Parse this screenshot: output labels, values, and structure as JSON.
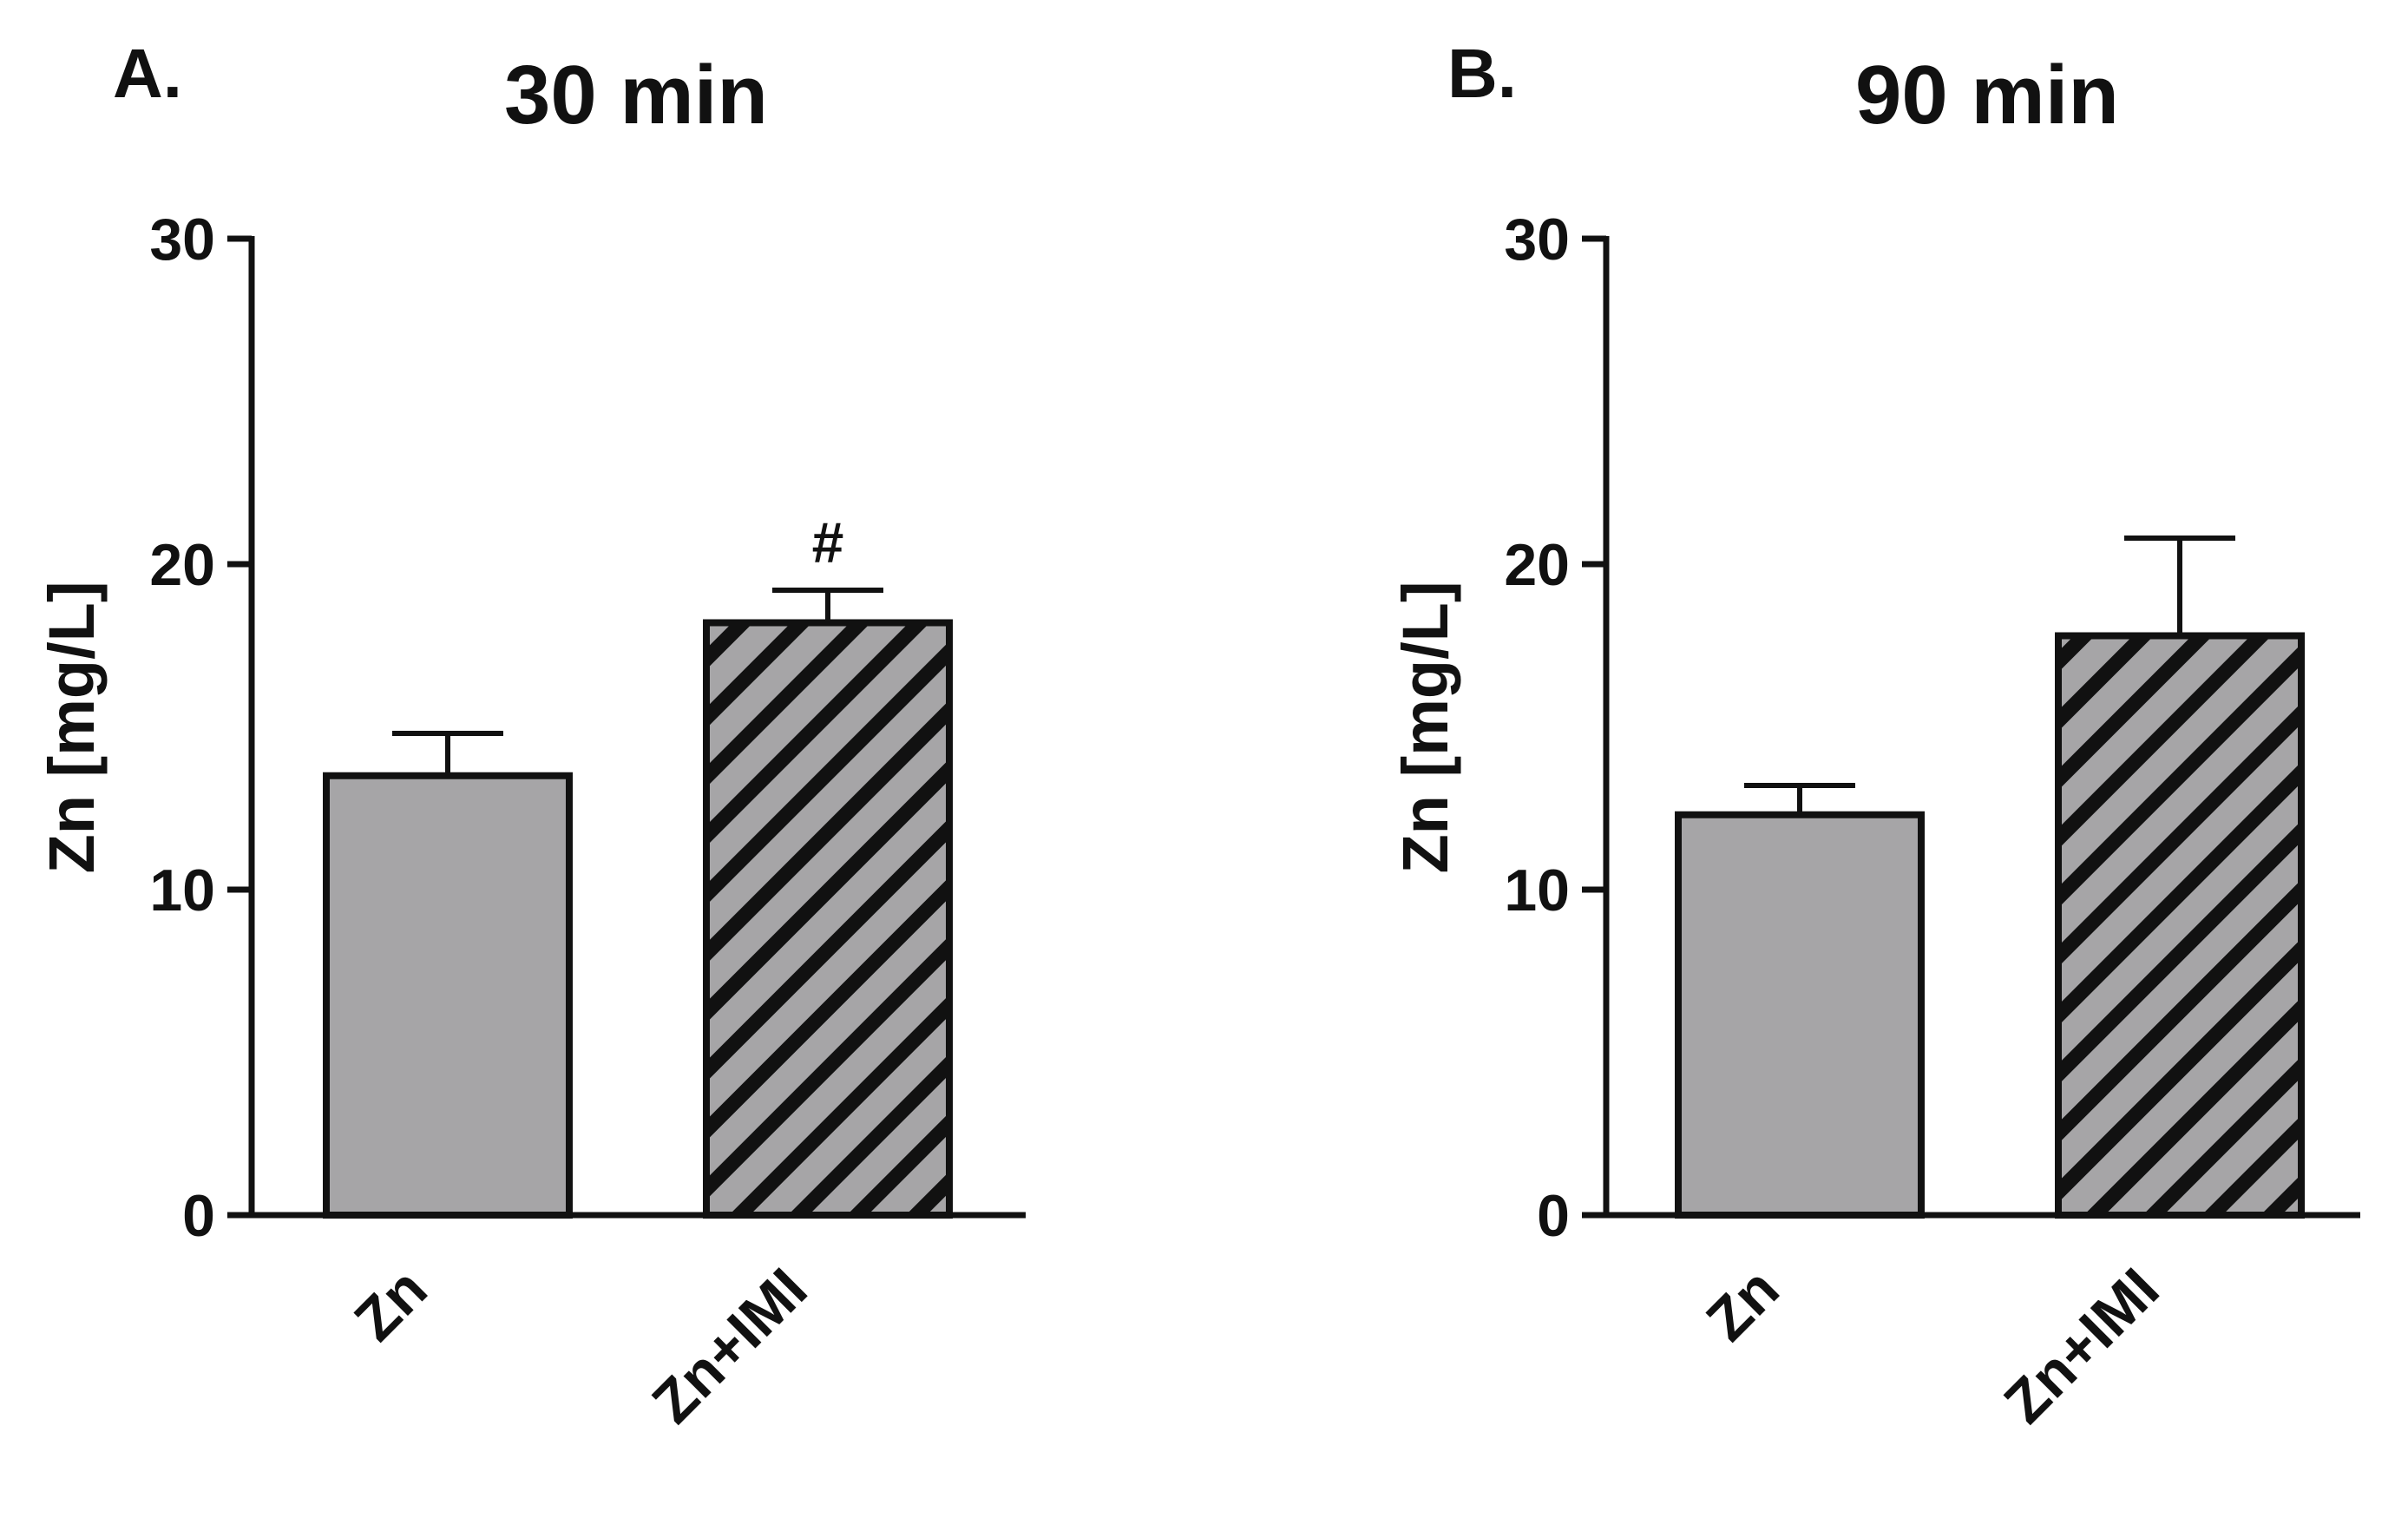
{
  "panels": [
    {
      "letter": "A.",
      "title": "30 min",
      "ylabel": "Zn [mg/L]"
    },
    {
      "letter": "B.",
      "title": "90 min",
      "ylabel": "Zn [mg/L]"
    }
  ],
  "colors": {
    "bar_fill": "#a6a5a7",
    "stroke": "#111111",
    "background": "#ffffff"
  },
  "chart_data": [
    {
      "type": "bar",
      "title": "30 min",
      "ylabel": "Zn [mg/L]",
      "xlabel": "",
      "ylim": [
        0,
        30
      ],
      "yticks": [
        "0",
        "10",
        "20",
        "30"
      ],
      "categories": [
        "Zn",
        "Zn+IMI"
      ],
      "values": [
        13.5,
        18.2
      ],
      "error": [
        1.3,
        1.0
      ],
      "patterns": [
        "solid",
        "hatched"
      ],
      "annotations": [
        "",
        "#"
      ],
      "grid": false
    },
    {
      "type": "bar",
      "title": "90 min",
      "ylabel": "Zn [mg/L]",
      "xlabel": "",
      "ylim": [
        0,
        30
      ],
      "yticks": [
        "0",
        "10",
        "20",
        "30"
      ],
      "categories": [
        "Zn",
        "Zn+IMI"
      ],
      "values": [
        12.3,
        17.8
      ],
      "error": [
        0.9,
        3.0
      ],
      "patterns": [
        "solid",
        "hatched"
      ],
      "annotations": [
        "",
        ""
      ],
      "grid": false
    }
  ]
}
